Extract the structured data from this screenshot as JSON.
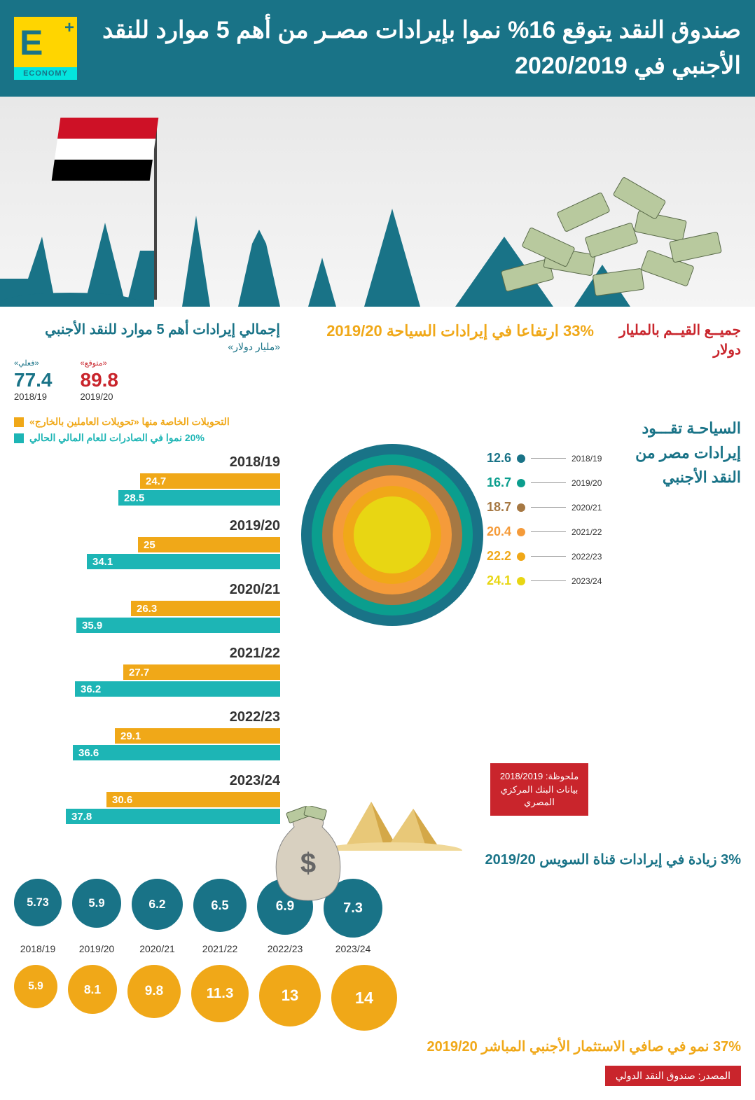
{
  "logo": {
    "letter": "E",
    "plus": "+",
    "word": "ECONOMY"
  },
  "headline": "صندوق النقد يتوقع 16% نموا بإيرادات مصـر من أهم 5 موارد للنقد الأجنبي في 2020/2019",
  "flag_colors": [
    "#ce1126",
    "#ffffff",
    "#000000"
  ],
  "values_note": "جميــع القيــم بالمليار دولار",
  "tourism_rise": "33% ارتفاعا في إيرادات السياحة 2019/20",
  "totals": {
    "title": "إجمالي إيرادات أهم 5 موارد للنقد الأجنبي",
    "sub": "«مليار دولار»",
    "expected": {
      "label": "«متوقع»",
      "color": "#c9252c",
      "value": "89.8",
      "year": "2019/20"
    },
    "actual": {
      "label": "«فعلي»",
      "color": "#197387",
      "value": "77.4",
      "year": "2018/19"
    }
  },
  "sun_title": "السياحـة تقـــود إيرادات مصر من النقد الأجنبي",
  "sun_rings": [
    {
      "r": 130,
      "c": "#197387"
    },
    {
      "r": 115,
      "c": "#0b9e8e"
    },
    {
      "r": 100,
      "c": "#a67843"
    },
    {
      "r": 85,
      "c": "#f59b3a"
    },
    {
      "r": 70,
      "c": "#f0a818"
    },
    {
      "r": 55,
      "c": "#e8d613"
    }
  ],
  "sun_data": [
    {
      "val": "12.6",
      "year": "2018/19",
      "c": "#197387"
    },
    {
      "val": "16.7",
      "year": "2019/20",
      "c": "#0b9e8e"
    },
    {
      "val": "18.7",
      "year": "2020/21",
      "c": "#a67843"
    },
    {
      "val": "20.4",
      "year": "2021/22",
      "c": "#f59b3a"
    },
    {
      "val": "22.2",
      "year": "2022/23",
      "c": "#f0a818"
    },
    {
      "val": "24.1",
      "year": "2023/24",
      "c": "#e8d613"
    }
  ],
  "note_box": "ملحوظة: 2018/2019 بيانات البنك المركزي المصري",
  "legend": {
    "orange": {
      "c": "#f0a818",
      "txt": "التحويلات الخاصة منها «تحويلات العاملين بالخارج»"
    },
    "teal": {
      "c": "#1db5b5",
      "txt": "20% نموا في الصادرات للعام المالي الحالي"
    }
  },
  "bars": [
    {
      "year": "2018/19",
      "o": "24.7",
      "ow": 200,
      "t": "28.5",
      "tw": 231
    },
    {
      "year": "2019/20",
      "o": "25",
      "ow": 203,
      "t": "34.1",
      "tw": 276
    },
    {
      "year": "2020/21",
      "o": "26.3",
      "ow": 213,
      "t": "35.9",
      "tw": 291
    },
    {
      "year": "2021/22",
      "o": "27.7",
      "ow": 224,
      "t": "36.2",
      "tw": 293
    },
    {
      "year": "2022/23",
      "o": "29.1",
      "ow": 236,
      "t": "36.6",
      "tw": 296
    },
    {
      "year": "2023/24",
      "o": "30.6",
      "ow": 248,
      "t": "37.8",
      "tw": 306
    }
  ],
  "suez": {
    "title": "3% زيادة في إيرادات قناة السويس 2019/20",
    "color": "#197387",
    "data": [
      {
        "v": "5.73",
        "y": "2018/19",
        "s": 68
      },
      {
        "v": "5.9",
        "y": "2019/20",
        "s": 70
      },
      {
        "v": "6.2",
        "y": "2020/21",
        "s": 73
      },
      {
        "v": "6.5",
        "y": "2021/22",
        "s": 76
      },
      {
        "v": "6.9",
        "y": "2022/23",
        "s": 80
      },
      {
        "v": "7.3",
        "y": "2023/24",
        "s": 84
      }
    ]
  },
  "fdi": {
    "title": "37% نمو في صافي الاستثمار الأجنبي المباشر 2019/20",
    "color": "#f0a818",
    "data": [
      {
        "v": "5.9",
        "s": 62
      },
      {
        "v": "8.1",
        "s": 70
      },
      {
        "v": "9.8",
        "s": 76
      },
      {
        "v": "11.3",
        "s": 82
      },
      {
        "v": "13",
        "s": 88
      },
      {
        "v": "14",
        "s": 94
      }
    ]
  },
  "source": "المصدر: صندوق النقد الدولي",
  "colors": {
    "header": "#197387",
    "orange": "#f0a818",
    "teal": "#1db5b5",
    "red": "#c9252c"
  }
}
